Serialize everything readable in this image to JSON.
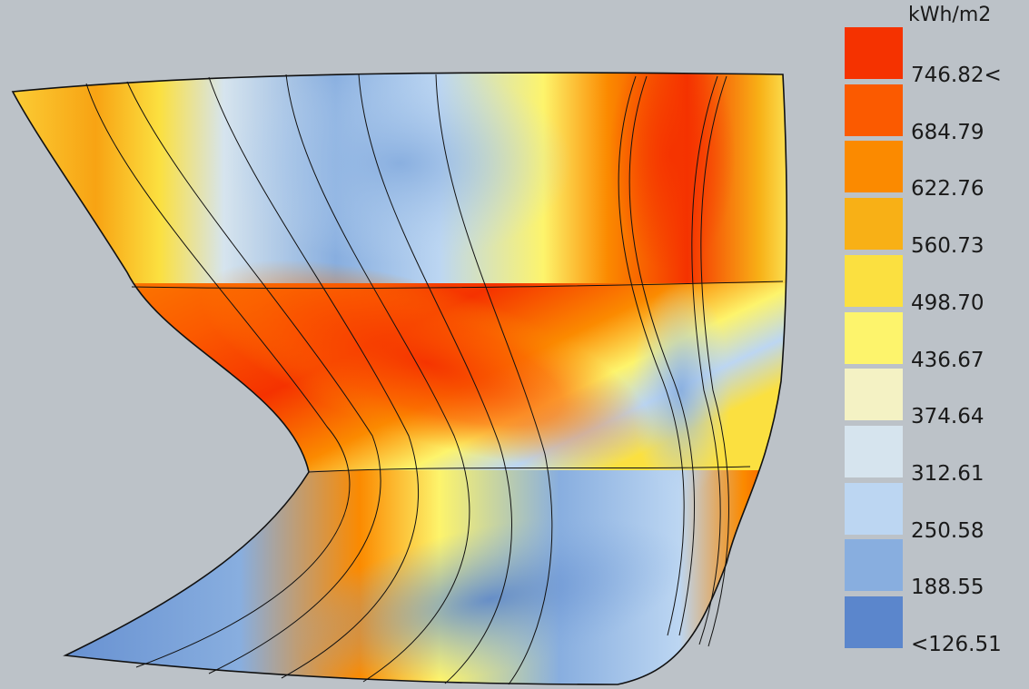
{
  "legend": {
    "unit": "kWh/m2",
    "bins": [
      {
        "color": "#f53200",
        "label": "746.82<"
      },
      {
        "color": "#fb5a00",
        "label": "684.79"
      },
      {
        "color": "#fb8a00",
        "label": "622.76"
      },
      {
        "color": "#f8b016",
        "label": "560.73"
      },
      {
        "color": "#fbe040",
        "label": "498.70"
      },
      {
        "color": "#fdf46c",
        "label": "436.67"
      },
      {
        "color": "#f4f2c4",
        "label": "374.64"
      },
      {
        "color": "#d6e4ee",
        "label": "312.61"
      },
      {
        "color": "#bcd6f2",
        "label": "250.58"
      },
      {
        "color": "#88aedf",
        "label": "188.55"
      },
      {
        "color": "#5b86cc",
        "label": "<126.51"
      }
    ]
  }
}
